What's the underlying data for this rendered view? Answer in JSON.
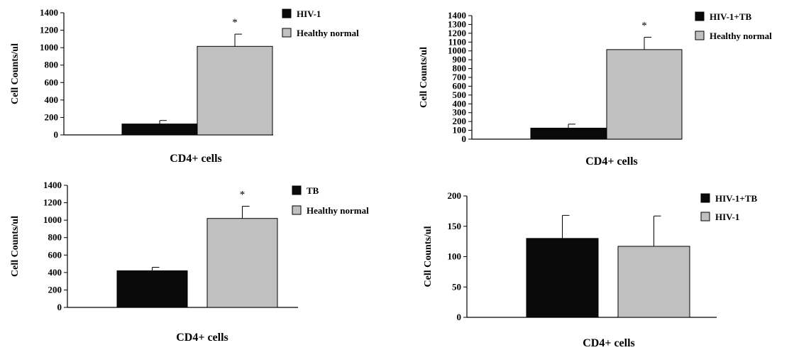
{
  "chart_data": [
    {
      "type": "bar",
      "categories": [
        "HIV-1",
        "Healthy normal"
      ],
      "values": [
        125,
        1015
      ],
      "errors": [
        40,
        140
      ],
      "colors": [
        "#0a0a0a",
        "#c0c0c0"
      ],
      "xlabel": "CD4+ cells",
      "ylabel": "Cell Counts/ul",
      "ylim": [
        0,
        1400
      ],
      "yticks": [
        "0",
        "200",
        "400",
        "600",
        "800",
        "1000",
        "1200",
        "1400"
      ],
      "legend": [
        "HIV-1",
        "Healthy normal"
      ],
      "legend_position": "top-right",
      "annotation": "*",
      "grid": false
    },
    {
      "type": "bar",
      "categories": [
        "HIV-1+TB",
        "Healthy normal"
      ],
      "values": [
        125,
        1015
      ],
      "errors": [
        45,
        140
      ],
      "colors": [
        "#0a0a0a",
        "#c0c0c0"
      ],
      "xlabel": "CD4+ cells",
      "ylabel": "Cell Counts/ul",
      "ylim": [
        0,
        1400
      ],
      "yticks": [
        "0",
        "100",
        "200",
        "300",
        "400",
        "500",
        "600",
        "700",
        "800",
        "900",
        "1000",
        "1100",
        "1200",
        "1300",
        "1400"
      ],
      "legend": [
        "HIV-1+TB",
        "Healthy normal"
      ],
      "legend_position": "top-right",
      "annotation": "*",
      "grid": false
    },
    {
      "type": "bar",
      "categories": [
        "TB",
        "Healthy normal"
      ],
      "values": [
        420,
        1020
      ],
      "errors": [
        40,
        140
      ],
      "colors": [
        "#0a0a0a",
        "#c0c0c0"
      ],
      "xlabel": "CD4+ cells",
      "ylabel": "Cell Counts/ul",
      "ylim": [
        0,
        1400
      ],
      "yticks": [
        "0",
        "200",
        "400",
        "600",
        "800",
        "1000",
        "1200",
        "1400"
      ],
      "legend": [
        "TB",
        "Healthy normal"
      ],
      "legend_position": "top-right",
      "annotation": "*",
      "grid": false
    },
    {
      "type": "bar",
      "categories": [
        "HIV-1+TB",
        "HIV-1"
      ],
      "values": [
        130,
        117
      ],
      "errors": [
        38,
        50
      ],
      "colors": [
        "#0a0a0a",
        "#c0c0c0"
      ],
      "xlabel": "CD4+ cells",
      "ylabel": "Cell Counts/ul",
      "ylim": [
        0,
        200
      ],
      "yticks": [
        "0",
        "50",
        "100",
        "150",
        "200"
      ],
      "legend": [
        "HIV-1+TB",
        "HIV-1"
      ],
      "legend_position": "top-right",
      "annotation": "",
      "grid": false
    }
  ]
}
